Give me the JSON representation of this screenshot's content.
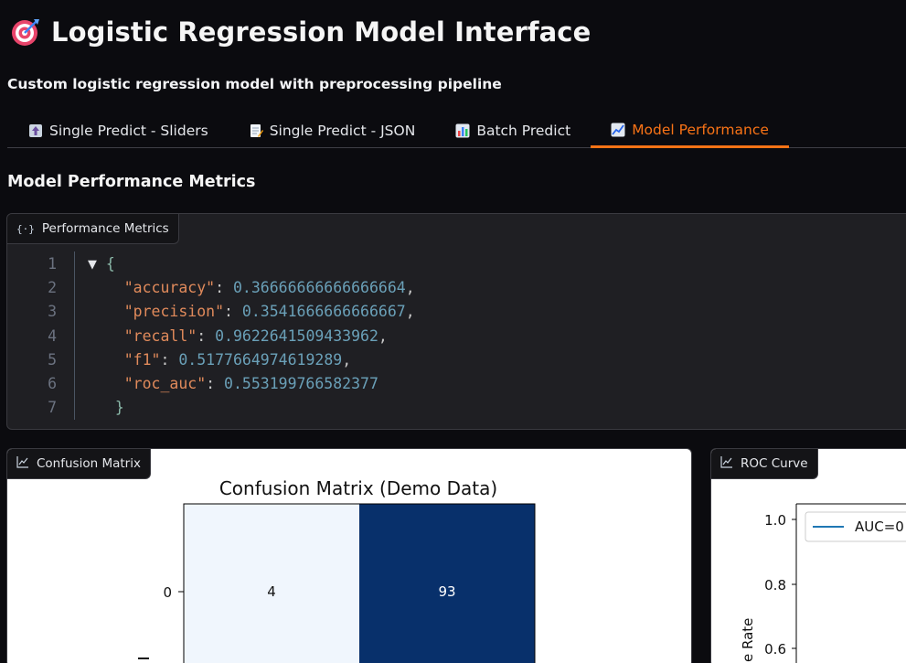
{
  "header": {
    "title": "Logistic Regression Model Interface",
    "subtitle": "Custom logistic regression model with preprocessing pipeline"
  },
  "tabs": [
    {
      "label": "Single Predict - Sliders",
      "icon": "upload-icon",
      "active": false
    },
    {
      "label": "Single Predict - JSON",
      "icon": "memo-icon",
      "active": false
    },
    {
      "label": "Batch Predict",
      "icon": "bar-chart-icon",
      "active": false
    },
    {
      "label": "Model Performance",
      "icon": "line-chart-icon",
      "active": true
    }
  ],
  "section": {
    "title": "Model Performance Metrics"
  },
  "metrics_panel": {
    "label": "Performance Metrics",
    "line_numbers": [
      "1",
      "2",
      "3",
      "4",
      "5",
      "6",
      "7"
    ],
    "open": "{",
    "close": "}",
    "entries": [
      {
        "key": "\"accuracy\"",
        "value": "0.36666666666666664"
      },
      {
        "key": "\"precision\"",
        "value": "0.3541666666666667"
      },
      {
        "key": "\"recall\"",
        "value": "0.9622641509433962"
      },
      {
        "key": "\"f1\"",
        "value": "0.5177664974619289"
      },
      {
        "key": "\"roc_auc\"",
        "value": "0.553199766582377"
      }
    ]
  },
  "confusion_panel": {
    "label": "Confusion Matrix",
    "chart_title": "Confusion Matrix (Demo Data)",
    "row_label": "0",
    "cells": [
      {
        "value": "4",
        "color": "#f0f6fd",
        "text_color": "#111111"
      },
      {
        "value": "93",
        "color": "#08306b",
        "text_color": "#ffffff"
      }
    ]
  },
  "roc_panel": {
    "label": "ROC Curve",
    "legend": "AUC=0",
    "y_ticks": [
      "1.0",
      "0.8",
      "0.6"
    ],
    "ylabel_fragment": "e Rate",
    "line_color": "#1f77b4"
  },
  "chart_data": [
    {
      "type": "heatmap",
      "title": "Confusion Matrix (Demo Data)",
      "rows": [
        "0"
      ],
      "values": [
        [
          4,
          93
        ]
      ],
      "colormap": "Blues"
    },
    {
      "type": "line",
      "title": "",
      "legend": [
        "AUC=0"
      ],
      "ylim": [
        0.55,
        1.03
      ],
      "y_ticks": [
        1.0,
        0.8,
        0.6
      ]
    }
  ]
}
